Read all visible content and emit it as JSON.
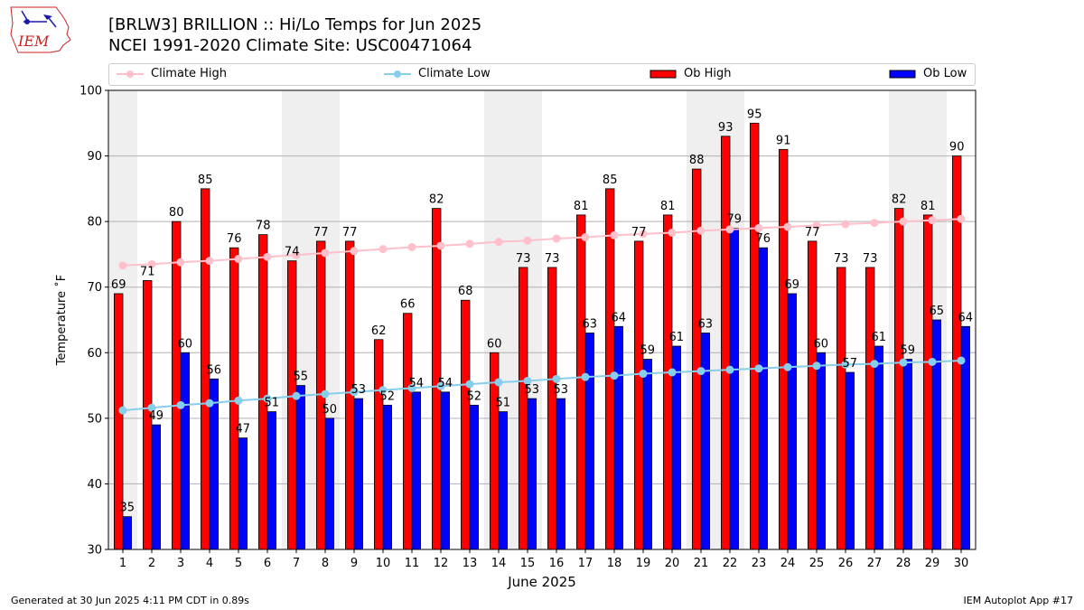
{
  "header": {
    "title_line1": "[BRLW3] BRILLION :: Hi/Lo Temps for Jun 2025",
    "title_line2": "NCEI 1991-2020 Climate Site: USC00471064"
  },
  "logo": {
    "text": "IEM",
    "colors": {
      "text": "#cc2222",
      "accent": "#1a1aaa"
    }
  },
  "footer": {
    "left": "Generated at 30 Jun 2025 4:11 PM CDT in 0.89s",
    "right": "IEM Autoplot App #17"
  },
  "chart_data": {
    "type": "bar",
    "xlabel": "June 2025",
    "ylabel": "Temperature ˚F",
    "ylim": [
      30,
      100
    ],
    "yticks": [
      30,
      40,
      50,
      60,
      70,
      80,
      90,
      100
    ],
    "categories": [
      "1",
      "2",
      "3",
      "4",
      "5",
      "6",
      "7",
      "8",
      "9",
      "10",
      "11",
      "12",
      "13",
      "14",
      "15",
      "16",
      "17",
      "18",
      "19",
      "20",
      "21",
      "22",
      "23",
      "24",
      "25",
      "26",
      "27",
      "28",
      "29",
      "30"
    ],
    "weekend_days": [
      1,
      7,
      8,
      14,
      15,
      21,
      22,
      28,
      29
    ],
    "grid": true,
    "legend_placement": "top",
    "series": [
      {
        "name": "Climate High",
        "kind": "line",
        "color": "#ffc0cb",
        "values": [
          73.3,
          73.5,
          73.8,
          74.0,
          74.3,
          74.6,
          74.9,
          75.2,
          75.5,
          75.8,
          76.1,
          76.3,
          76.6,
          76.9,
          77.1,
          77.4,
          77.6,
          77.9,
          78.1,
          78.3,
          78.6,
          78.8,
          79.0,
          79.2,
          79.4,
          79.6,
          79.8,
          80.0,
          80.2,
          80.4
        ]
      },
      {
        "name": "Climate Low",
        "kind": "line",
        "color": "#87ceeb",
        "values": [
          51.2,
          51.6,
          52.0,
          52.3,
          52.7,
          53.0,
          53.4,
          53.7,
          54.0,
          54.3,
          54.6,
          54.9,
          55.2,
          55.5,
          55.7,
          56.0,
          56.3,
          56.5,
          56.8,
          57.0,
          57.2,
          57.4,
          57.6,
          57.8,
          58.0,
          58.2,
          58.3,
          58.5,
          58.6,
          58.8
        ]
      },
      {
        "name": "Ob High",
        "kind": "bar",
        "color": "#ff0000",
        "values": [
          69,
          71,
          80,
          85,
          76,
          78,
          74,
          77,
          77,
          62,
          66,
          82,
          68,
          60,
          73,
          73,
          81,
          85,
          77,
          81,
          88,
          93,
          95,
          91,
          77,
          73,
          73,
          82,
          81,
          90
        ]
      },
      {
        "name": "Ob Low",
        "kind": "bar",
        "color": "#0000ff",
        "values": [
          35,
          49,
          60,
          56,
          47,
          51,
          55,
          50,
          53,
          52,
          54,
          54,
          52,
          51,
          53,
          53,
          63,
          64,
          59,
          61,
          63,
          79,
          76,
          69,
          60,
          57,
          61,
          59,
          65,
          64
        ]
      }
    ]
  }
}
